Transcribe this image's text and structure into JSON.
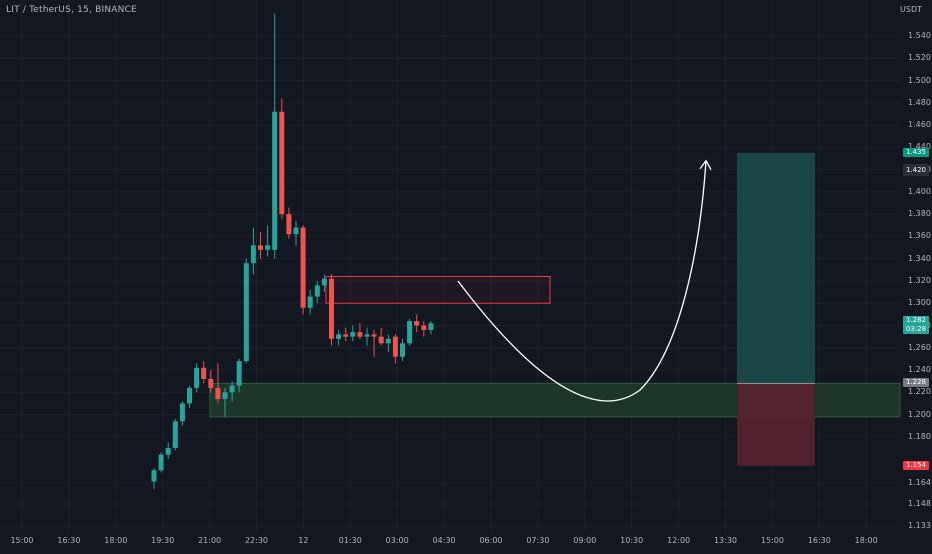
{
  "header": {
    "symbol": "LIT / TetherUS, 15, BINANCE",
    "currency": "USDT"
  },
  "colors": {
    "background": "#131722",
    "up": "#26a69a",
    "down": "#ef5350",
    "grid": "#1e222d",
    "target_zone": "#1b4a4a",
    "stop_zone": "#5a2230",
    "demand_zone": "#1e3d2a",
    "supply_box": "#f23645",
    "arrow": "#ffffff"
  },
  "price_axis": {
    "ticks": [
      "1.540",
      "1.520",
      "1.500",
      "1.480",
      "1.460",
      "1.440",
      "1.420",
      "1.400",
      "1.380",
      "1.360",
      "1.340",
      "1.320",
      "1.300",
      "1.280",
      "1.260",
      "1.240",
      "1.220",
      "1.200",
      "1.180",
      "1.164",
      "1.148",
      "1.133"
    ]
  },
  "time_axis": {
    "ticks": [
      "15:00",
      "16:30",
      "18:00",
      "19:30",
      "21:00",
      "22:30",
      "12",
      "01:30",
      "03:00",
      "04:30",
      "06:00",
      "07:30",
      "09:00",
      "10:30",
      "12:00",
      "13:30",
      "15:00",
      "16:30",
      "18:00"
    ]
  },
  "badges": {
    "target": {
      "value": "1.435",
      "color": "#089981"
    },
    "crosshair": {
      "value": "1.420",
      "color": "#2a2e39"
    },
    "current_price": {
      "value": "1.282",
      "countdown": "03:28",
      "color": "#26a69a"
    },
    "entry": {
      "value": "1.228",
      "color": "#787b86"
    },
    "stop": {
      "value": "1.154",
      "color": "#f23645"
    }
  },
  "chart_data": {
    "type": "candlestick",
    "interval": "15",
    "ylim": [
      1.133,
      1.55
    ],
    "candles": [
      {
        "o": 1.14,
        "h": 1.152,
        "l": 1.133,
        "c": 1.15
      },
      {
        "o": 1.15,
        "h": 1.166,
        "l": 1.148,
        "c": 1.164
      },
      {
        "o": 1.164,
        "h": 1.175,
        "l": 1.16,
        "c": 1.17
      },
      {
        "o": 1.17,
        "h": 1.196,
        "l": 1.168,
        "c": 1.194
      },
      {
        "o": 1.194,
        "h": 1.212,
        "l": 1.19,
        "c": 1.21
      },
      {
        "o": 1.21,
        "h": 1.226,
        "l": 1.206,
        "c": 1.224
      },
      {
        "o": 1.224,
        "h": 1.246,
        "l": 1.22,
        "c": 1.242
      },
      {
        "o": 1.242,
        "h": 1.248,
        "l": 1.228,
        "c": 1.232
      },
      {
        "o": 1.232,
        "h": 1.24,
        "l": 1.22,
        "c": 1.224
      },
      {
        "o": 1.224,
        "h": 1.246,
        "l": 1.21,
        "c": 1.214
      },
      {
        "o": 1.214,
        "h": 1.224,
        "l": 1.198,
        "c": 1.22
      },
      {
        "o": 1.22,
        "h": 1.23,
        "l": 1.212,
        "c": 1.226
      },
      {
        "o": 1.226,
        "h": 1.25,
        "l": 1.22,
        "c": 1.248
      },
      {
        "o": 1.248,
        "h": 1.34,
        "l": 1.246,
        "c": 1.336
      },
      {
        "o": 1.336,
        "h": 1.368,
        "l": 1.326,
        "c": 1.352
      },
      {
        "o": 1.352,
        "h": 1.364,
        "l": 1.34,
        "c": 1.348
      },
      {
        "o": 1.348,
        "h": 1.37,
        "l": 1.342,
        "c": 1.352
      },
      {
        "o": 1.348,
        "h": 1.56,
        "l": 1.34,
        "c": 1.472
      },
      {
        "o": 1.472,
        "h": 1.484,
        "l": 1.376,
        "c": 1.38
      },
      {
        "o": 1.38,
        "h": 1.386,
        "l": 1.358,
        "c": 1.362
      },
      {
        "o": 1.362,
        "h": 1.374,
        "l": 1.352,
        "c": 1.368
      },
      {
        "o": 1.368,
        "h": 1.37,
        "l": 1.29,
        "c": 1.296
      },
      {
        "o": 1.296,
        "h": 1.312,
        "l": 1.29,
        "c": 1.306
      },
      {
        "o": 1.306,
        "h": 1.32,
        "l": 1.3,
        "c": 1.316
      },
      {
        "o": 1.316,
        "h": 1.326,
        "l": 1.31,
        "c": 1.322
      },
      {
        "o": 1.322,
        "h": 1.326,
        "l": 1.262,
        "c": 1.268
      },
      {
        "o": 1.268,
        "h": 1.276,
        "l": 1.262,
        "c": 1.272
      },
      {
        "o": 1.272,
        "h": 1.278,
        "l": 1.266,
        "c": 1.27
      },
      {
        "o": 1.27,
        "h": 1.28,
        "l": 1.266,
        "c": 1.274
      },
      {
        "o": 1.274,
        "h": 1.282,
        "l": 1.268,
        "c": 1.27
      },
      {
        "o": 1.27,
        "h": 1.278,
        "l": 1.262,
        "c": 1.272
      },
      {
        "o": 1.272,
        "h": 1.276,
        "l": 1.252,
        "c": 1.27
      },
      {
        "o": 1.27,
        "h": 1.278,
        "l": 1.262,
        "c": 1.264
      },
      {
        "o": 1.264,
        "h": 1.272,
        "l": 1.256,
        "c": 1.268
      },
      {
        "o": 1.27,
        "h": 1.272,
        "l": 1.246,
        "c": 1.252
      },
      {
        "o": 1.252,
        "h": 1.268,
        "l": 1.248,
        "c": 1.264
      },
      {
        "o": 1.264,
        "h": 1.286,
        "l": 1.262,
        "c": 1.284
      },
      {
        "o": 1.284,
        "h": 1.29,
        "l": 1.274,
        "c": 1.28
      },
      {
        "o": 1.28,
        "h": 1.284,
        "l": 1.27,
        "c": 1.276
      },
      {
        "o": 1.276,
        "h": 1.284,
        "l": 1.272,
        "c": 1.282
      }
    ],
    "drawings": {
      "supply_zone": {
        "top": 1.324,
        "bottom": 1.3
      },
      "demand_zone": {
        "top": 1.228,
        "bottom": 1.198
      },
      "position": {
        "entry": 1.228,
        "target": 1.435,
        "stop": 1.154
      },
      "projection_path": [
        [
          1.32,
          0
        ],
        [
          1.218,
          0.5
        ],
        [
          1.428,
          1
        ]
      ]
    }
  }
}
